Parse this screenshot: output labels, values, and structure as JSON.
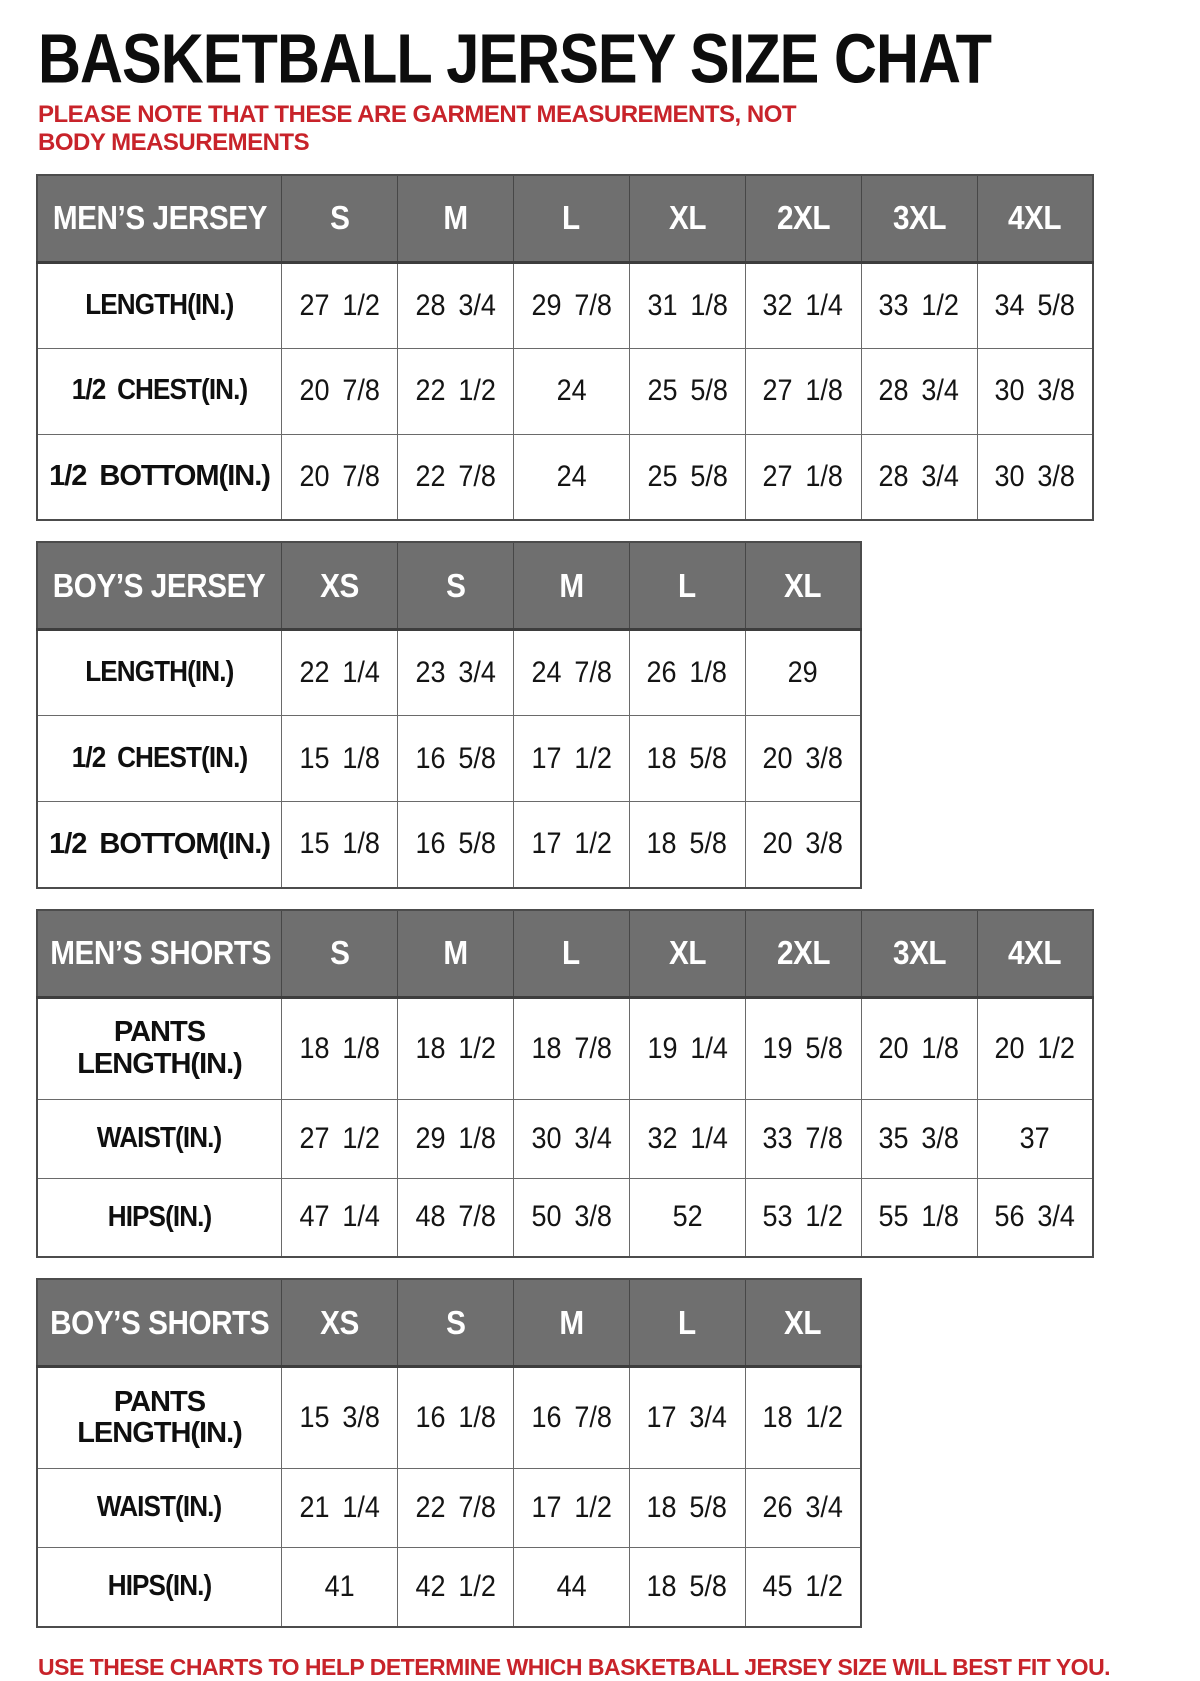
{
  "page": {
    "title": "BASKETBALL JERSEY SIZE CHAT",
    "note": "PLEASE NOTE THAT THESE ARE GARMENT MEASUREMENTS, NOT BODY MEASUREMENTS",
    "footer": "USE THESE CHARTS TO HELP DETERMINE WHICH BASKETBALL JERSEY SIZE WILL BEST FIT YOU.",
    "colors": {
      "accent_red": "#c8232a",
      "header_gray": "#6f6f6f",
      "border_gray": "#4c4c4c",
      "text_black": "#111111",
      "background": "#ffffff"
    }
  },
  "tables": [
    {
      "id": "mens-jersey",
      "header": [
        "MEN’S JERSEY",
        "S",
        "M",
        "L",
        "XL",
        "2XL",
        "3XL",
        "4XL"
      ],
      "rows": [
        [
          "LENGTH(IN.)",
          "27 1/2",
          "28 3/4",
          "29 7/8",
          "31 1/8",
          "32 1/4",
          "33 1/2",
          "34 5/8"
        ],
        [
          "1/2 CHEST(IN.)",
          "20 7/8",
          "22 1/2",
          "24",
          "25 5/8",
          "27 1/8",
          "28 3/4",
          "30 3/8"
        ],
        [
          "1/2 BOTTOM(IN.)",
          "20 7/8",
          "22 7/8",
          "24",
          "25 5/8",
          "27 1/8",
          "28 3/4",
          "30 3/8"
        ]
      ]
    },
    {
      "id": "boys-jersey",
      "header": [
        "BOY’S JERSEY",
        "XS",
        "S",
        "M",
        "L",
        "XL"
      ],
      "rows": [
        [
          "LENGTH(IN.)",
          "22 1/4",
          "23 3/4",
          "24 7/8",
          "26 1/8",
          "29"
        ],
        [
          "1/2 CHEST(IN.)",
          "15 1/8",
          "16 5/8",
          "17 1/2",
          "18 5/8",
          "20 3/8"
        ],
        [
          "1/2 BOTTOM(IN.)",
          "15 1/8",
          "16 5/8",
          "17 1/2",
          "18 5/8",
          "20 3/8"
        ]
      ]
    },
    {
      "id": "mens-shorts",
      "header": [
        "MEN’S SHORTS",
        "S",
        "M",
        "L",
        "XL",
        "2XL",
        "3XL",
        "4XL"
      ],
      "rows": [
        [
          "PANTS LENGTH(IN.)",
          "18 1/8",
          "18 1/2",
          "18 7/8",
          "19 1/4",
          "19 5/8",
          "20 1/8",
          "20 1/2"
        ],
        [
          "WAIST(IN.)",
          "27 1/2",
          "29 1/8",
          "30 3/4",
          "32 1/4",
          "33 7/8",
          "35 3/8",
          "37"
        ],
        [
          "HIPS(IN.)",
          "47 1/4",
          "48 7/8",
          "50 3/8",
          "52",
          "53 1/2",
          "55 1/8",
          "56 3/4"
        ]
      ]
    },
    {
      "id": "boys-shorts",
      "header": [
        "BOY’S SHORTS",
        "XS",
        "S",
        "M",
        "L",
        "XL"
      ],
      "rows": [
        [
          "PANTS LENGTH(IN.)",
          "15 3/8",
          "16 1/8",
          "16 7/8",
          "17 3/4",
          "18 1/2"
        ],
        [
          "WAIST(IN.)",
          "21 1/4",
          "22 7/8",
          "17 1/2",
          "18 5/8",
          "26 3/4"
        ],
        [
          "HIPS(IN.)",
          "41",
          "42 1/2",
          "44",
          "18 5/8",
          "45 1/2"
        ]
      ]
    }
  ]
}
